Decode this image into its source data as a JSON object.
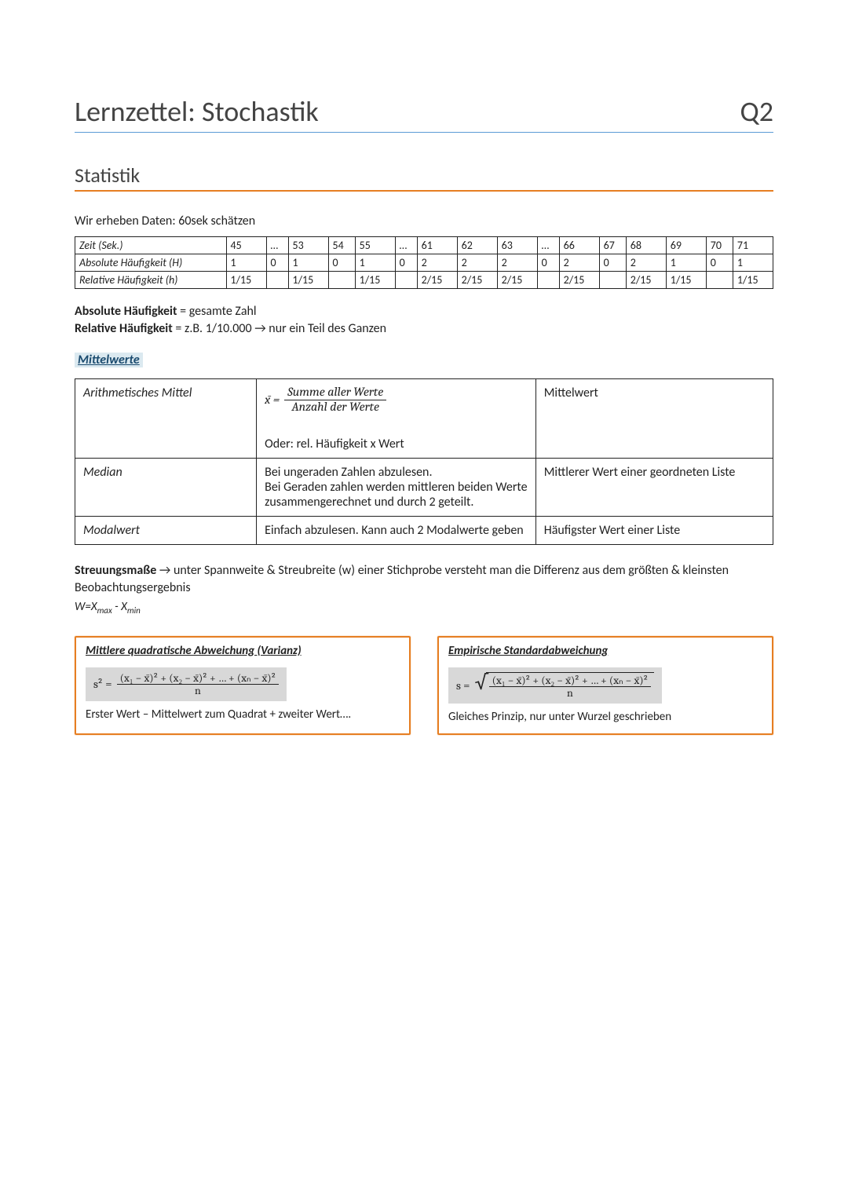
{
  "header": {
    "title": "Lernzettel: Stochastik",
    "meta": "Q2"
  },
  "section": "Statistik",
  "intro": "Wir erheben Daten: 60sek schätzen",
  "freq_table": {
    "row_labels": [
      "Zeit (Sek.)",
      "Absolute Häufigkeit (H)",
      "Relative Häufigkeit (h)"
    ],
    "cols": [
      "45",
      "…",
      "53",
      "54",
      "55",
      "…",
      "61",
      "62",
      "63",
      "…",
      "66",
      "67",
      "68",
      "69",
      "70",
      "71"
    ],
    "abs": [
      "1",
      "0",
      "1",
      "0",
      "1",
      "0",
      "2",
      "2",
      "2",
      "0",
      "2",
      "0",
      "2",
      "1",
      "0",
      "1"
    ],
    "rel": [
      "1/15",
      "",
      "1/15",
      "",
      "1/15",
      "",
      "2/15",
      "2/15",
      "2/15",
      "",
      "2/15",
      "",
      "2/15",
      "1/15",
      "",
      "1/15"
    ]
  },
  "definitions": {
    "abs_label": "Absolute Häufigkeit",
    "abs_text": " = gesamte Zahl",
    "rel_label": "Relative Häufigkeit",
    "rel_text": " = z.B. 1/10.000 → nur ein Teil des Ganzen"
  },
  "mittelwerte_heading": "Mittelwerte",
  "means_rows": [
    {
      "name": "Arithmetisches Mittel",
      "formula_lhs": "x̄ =",
      "formula_num": "Summe aller Werte",
      "formula_den": "Anzahl der Werte",
      "extra": "Oder: rel. Häufigkeit x Wert",
      "desc": "Mittelwert"
    },
    {
      "name": "Median",
      "text": "Bei ungeraden Zahlen abzulesen.\nBei Geraden zahlen werden mittleren beiden Werte zusammengerechnet und durch 2 geteilt.",
      "desc": "Mittlerer Wert einer geordneten Liste"
    },
    {
      "name": "Modalwert",
      "text": "Einfach abzulesen. Kann auch 2 Modalwerte geben",
      "desc": "Häufigster Wert einer Liste"
    }
  ],
  "streu": {
    "label": "Streuungsmaße",
    "text": " → unter Spannweite & Streubreite (w) einer Stichprobe versteht man die Differenz aus dem größten & kleinsten Beobachtungsergebnis",
    "formula_prefix": "W=X",
    "sub1": "max",
    "mid": " - X",
    "sub2": "min"
  },
  "boxes": {
    "variance": {
      "title": "Mittlere quadratische Abweichung (Varianz)",
      "lhs": "s² =",
      "num": "(x₁ − x̄)² + (x₂ − x̄)² + … + (xₙ − x̄)²",
      "den": "n",
      "note": "Erster Wert – Mittelwert zum Quadrat + zweiter Wert…."
    },
    "stddev": {
      "title": "Empirische Standardabweichung",
      "lhs": "s =",
      "num": "(x₁ − x̄)² + (x₂ − x̄)² + … + (xₙ − x̄)²",
      "den": "n",
      "note": "Gleiches Prinzip, nur unter Wurzel geschrieben"
    }
  },
  "colors": {
    "accent_blue": "#5b9bd5",
    "accent_orange": "#e67e22",
    "highlight_bg": "#dbe9f0",
    "formula_bg": "#d8d8d8",
    "text": "#222222"
  }
}
